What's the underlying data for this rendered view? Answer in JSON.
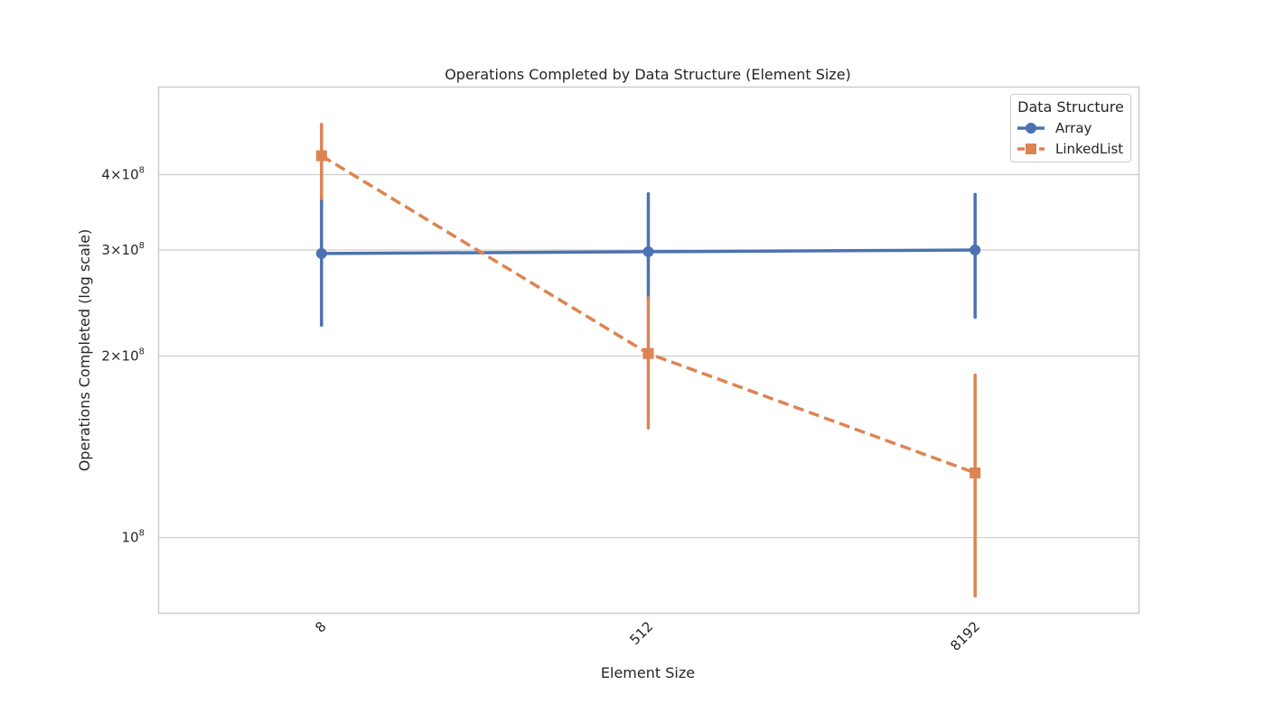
{
  "chart_data": {
    "type": "line",
    "title": "Operations Completed by Data Structure (Element Size)",
    "xlabel": "Element Size",
    "ylabel": "Operations Completed (log scale)",
    "yscale": "log",
    "ylim": [
      75000000,
      560000000
    ],
    "categories": [
      "8",
      "512",
      "8192"
    ],
    "y_ticks": [
      {
        "value": 100000000,
        "base": "10",
        "exp": "8"
      },
      {
        "value": 200000000,
        "base": "2×10",
        "exp": "8"
      },
      {
        "value": 300000000,
        "base": "3×10",
        "exp": "8"
      },
      {
        "value": 400000000,
        "base": "4×10",
        "exp": "8"
      }
    ],
    "grid": "horizontal",
    "legend": {
      "title": "Data Structure",
      "placement": "top-right"
    },
    "series": [
      {
        "name": "Array",
        "color": "#4c72b0",
        "marker": "circle",
        "linestyle": "solid",
        "values": [
          296000000,
          298000000,
          300000000
        ],
        "ci_low": [
          225000000,
          248000000,
          232000000
        ],
        "ci_high": [
          365000000,
          372000000,
          371000000
        ]
      },
      {
        "name": "LinkedList",
        "color": "#dd8452",
        "marker": "square",
        "linestyle": "dashed",
        "values": [
          430000000,
          202000000,
          128000000
        ],
        "ci_low": [
          365000000,
          152000000,
          80000000
        ],
        "ci_high": [
          485000000,
          250000000,
          186000000
        ]
      }
    ]
  }
}
